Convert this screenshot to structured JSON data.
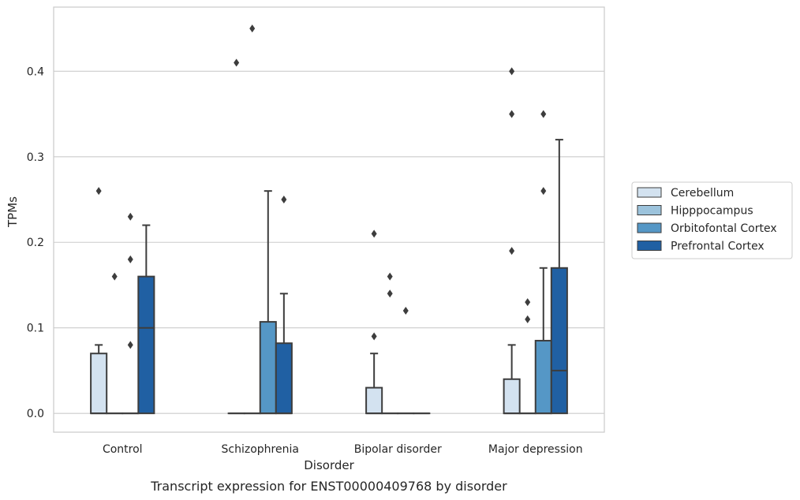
{
  "chart_data": {
    "type": "box",
    "caption": "Transcript expression for ENST00000409768 by disorder",
    "xlabel": "Disorder",
    "ylabel": "TPMs",
    "ylim": [
      -0.022,
      0.475
    ],
    "yticks": [
      0.0,
      0.1,
      0.2,
      0.3,
      0.4
    ],
    "ytick_labels": [
      "0.0",
      "0.1",
      "0.2",
      "0.3",
      "0.4"
    ],
    "grid": "horizontal",
    "legend_position": "right",
    "categories": [
      "Control",
      "Schizophrenia",
      "Bipolar disorder",
      "Major depression"
    ],
    "series": [
      {
        "name": "Cerebellum",
        "color": "#d3e2f0",
        "boxes": [
          {
            "q1": 0.0,
            "median": 0.0,
            "q3": 0.07,
            "whisker_low": 0.0,
            "whisker_high": 0.08,
            "outliers": [
              0.26
            ]
          },
          {
            "q1": 0.0,
            "median": 0.0,
            "q3": 0.0,
            "whisker_low": 0.0,
            "whisker_high": 0.0,
            "outliers": [
              0.41
            ]
          },
          {
            "q1": 0.0,
            "median": 0.0,
            "q3": 0.03,
            "whisker_low": 0.0,
            "whisker_high": 0.07,
            "outliers": [
              0.09,
              0.21
            ]
          },
          {
            "q1": 0.0,
            "median": 0.0,
            "q3": 0.04,
            "whisker_low": 0.0,
            "whisker_high": 0.08,
            "outliers": [
              0.19,
              0.35,
              0.4
            ]
          }
        ]
      },
      {
        "name": "Hipppocampus",
        "color": "#9cc3dc",
        "boxes": [
          {
            "q1": 0.0,
            "median": 0.0,
            "q3": 0.0,
            "whisker_low": 0.0,
            "whisker_high": 0.0,
            "outliers": [
              0.16
            ]
          },
          {
            "q1": 0.0,
            "median": 0.0,
            "q3": 0.0,
            "whisker_low": 0.0,
            "whisker_high": 0.0,
            "outliers": [
              0.45
            ]
          },
          {
            "q1": 0.0,
            "median": 0.0,
            "q3": 0.0,
            "whisker_low": 0.0,
            "whisker_high": 0.0,
            "outliers": [
              0.14,
              0.16
            ]
          },
          {
            "q1": 0.0,
            "median": 0.0,
            "q3": 0.0,
            "whisker_low": 0.0,
            "whisker_high": 0.0,
            "outliers": [
              0.11,
              0.13
            ]
          }
        ]
      },
      {
        "name": "Orbitofontal Cortex",
        "color": "#5597c6",
        "boxes": [
          {
            "q1": 0.0,
            "median": 0.0,
            "q3": 0.0,
            "whisker_low": 0.0,
            "whisker_high": 0.0,
            "outliers": [
              0.08,
              0.18,
              0.23
            ]
          },
          {
            "q1": 0.0,
            "median": 0.0,
            "q3": 0.107,
            "whisker_low": 0.0,
            "whisker_high": 0.26,
            "outliers": []
          },
          {
            "q1": 0.0,
            "median": 0.0,
            "q3": 0.0,
            "whisker_low": 0.0,
            "whisker_high": 0.0,
            "outliers": [
              0.12
            ]
          },
          {
            "q1": 0.0,
            "median": 0.0,
            "q3": 0.085,
            "whisker_low": 0.0,
            "whisker_high": 0.17,
            "outliers": [
              0.26,
              0.35
            ]
          }
        ]
      },
      {
        "name": "Prefrontal Cortex",
        "color": "#2060a3",
        "boxes": [
          {
            "q1": 0.0,
            "median": 0.1,
            "q3": 0.16,
            "whisker_low": 0.0,
            "whisker_high": 0.22,
            "outliers": []
          },
          {
            "q1": 0.0,
            "median": 0.0,
            "q3": 0.082,
            "whisker_low": 0.0,
            "whisker_high": 0.14,
            "outliers": [
              0.25
            ]
          },
          {
            "q1": 0.0,
            "median": 0.0,
            "q3": 0.0,
            "whisker_low": 0.0,
            "whisker_high": 0.0,
            "outliers": []
          },
          {
            "q1": 0.0,
            "median": 0.05,
            "q3": 0.17,
            "whisker_low": 0.0,
            "whisker_high": 0.32,
            "outliers": []
          }
        ]
      }
    ]
  }
}
